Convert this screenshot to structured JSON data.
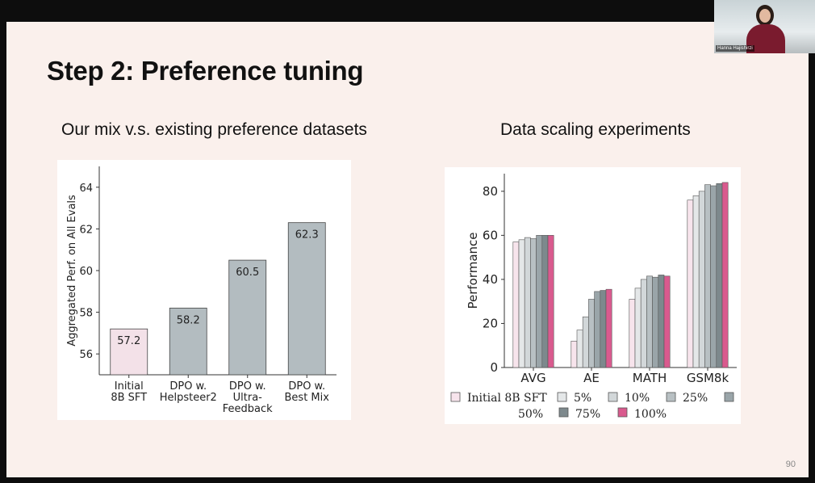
{
  "slide": {
    "title": "Step 2: Preference tuning",
    "left_subtitle": "Our mix v.s. existing preference datasets",
    "right_subtitle": "Data scaling experiments",
    "page_number": "90"
  },
  "webcam": {
    "name": "Hanna Hajishirzi"
  },
  "colors": {
    "pink_bar": "#f3e1e8",
    "gray_bar": "#b3bcc0",
    "pink_100": "#d95a8e"
  },
  "chart_data": [
    {
      "type": "bar",
      "categories": [
        "Initial\n8B SFT",
        "DPO w.\nHelpsteer2",
        "DPO w.\nUltra-\nFeedback",
        "DPO w.\nBest Mix"
      ],
      "values": [
        57.2,
        58.2,
        60.5,
        62.3
      ],
      "value_labels": [
        "57.2",
        "58.2",
        "60.5",
        "62.3"
      ],
      "ylabel": "Aggregated Perf. on All Evals",
      "ylim": [
        55,
        65
      ],
      "yticks": [
        56,
        58,
        60,
        62,
        64
      ],
      "bar_colors": [
        "#f3e1e8",
        "#b3bcc0",
        "#b3bcc0",
        "#b3bcc0"
      ]
    },
    {
      "type": "bar",
      "categories": [
        "AVG",
        "AE",
        "MATH",
        "GSM8k"
      ],
      "ylabel": "Performance",
      "ylim": [
        0,
        88
      ],
      "yticks": [
        0,
        20,
        40,
        60,
        80
      ],
      "legend_placement": "bottom",
      "series": [
        {
          "name": "Initial 8B SFT",
          "color": "#f7e4ec",
          "values": [
            57,
            12,
            31,
            76
          ]
        },
        {
          "name": "5%",
          "color": "#e4e7e8",
          "values": [
            58,
            17,
            36,
            78
          ]
        },
        {
          "name": "10%",
          "color": "#d2d7d9",
          "values": [
            59,
            23,
            40,
            80
          ]
        },
        {
          "name": "25%",
          "color": "#b8c0c3",
          "values": [
            58.5,
            31,
            41.5,
            83
          ]
        },
        {
          "name": "50%",
          "color": "#9aa5a9",
          "values": [
            60,
            34.5,
            41,
            82.5
          ]
        },
        {
          "name": "75%",
          "color": "#7d898d",
          "values": [
            60,
            35,
            42,
            83.5
          ]
        },
        {
          "name": "100%",
          "color": "#d95a8e",
          "values": [
            60,
            35.5,
            41.5,
            84
          ]
        }
      ]
    }
  ]
}
